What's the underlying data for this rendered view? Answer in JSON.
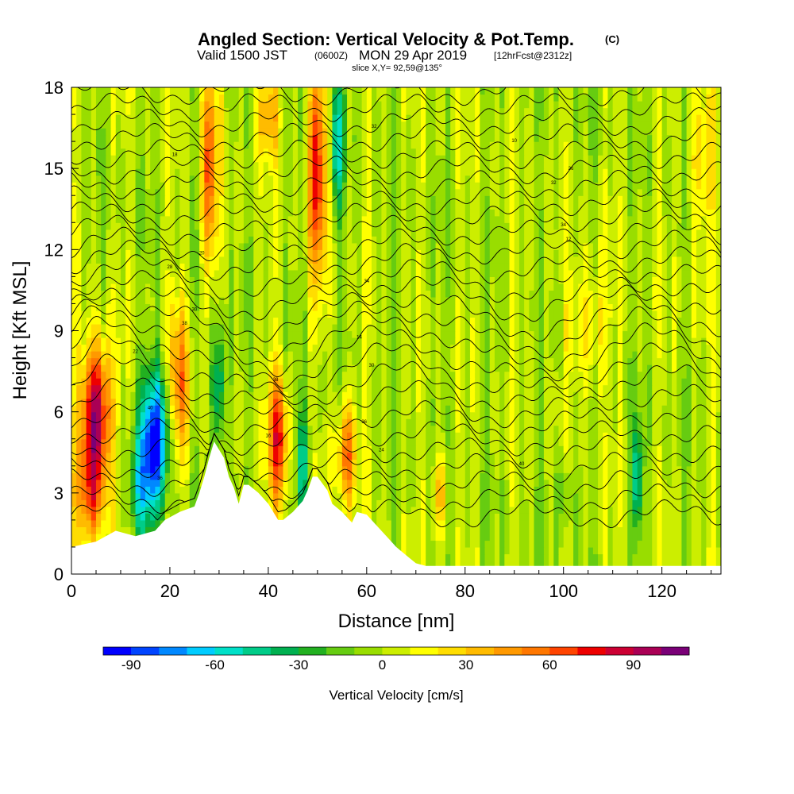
{
  "header": {
    "title": "Angled Section: Vertical Velocity & Pot.Temp.",
    "title_mark": "(C)",
    "subtitle_a": "Valid 1500 JST",
    "subtitle_b": "(0600Z)",
    "subtitle_c": "MON 29 Apr 2019",
    "subtitle_d": "[12hrFcst@2312z]",
    "slice": "slice X,Y= 92,59@135°"
  },
  "chart_data": {
    "type": "heatmap",
    "title": "Angled Section: Vertical Velocity & Pot.Temp.",
    "xlabel": "Distance [nm]",
    "ylabel": "Height [Kft MSL]",
    "xlim": [
      0,
      132
    ],
    "ylim": [
      0,
      18
    ],
    "x_ticks": [
      "0",
      "20",
      "40",
      "60",
      "80",
      "100",
      "120"
    ],
    "x_tick_values": [
      0,
      20,
      40,
      60,
      80,
      100,
      120
    ],
    "y_ticks": [
      "0",
      "3",
      "6",
      "9",
      "12",
      "15",
      "18"
    ],
    "y_tick_values": [
      0,
      3,
      6,
      9,
      12,
      15,
      18
    ],
    "colorbar": {
      "label": "Vertical Velocity [cm/s]",
      "ticks": [
        "-90",
        "-60",
        "-30",
        "0",
        "30",
        "60",
        "90"
      ],
      "tick_values": [
        -90,
        -60,
        -30,
        0,
        30,
        60,
        90
      ],
      "range": [
        -100,
        110
      ],
      "step": 10,
      "colors": [
        "#0000ff",
        "#0044ff",
        "#0088ff",
        "#00ccff",
        "#00e0c8",
        "#00cc88",
        "#00b050",
        "#22b020",
        "#66cc11",
        "#99dd00",
        "#ccee00",
        "#ffff00",
        "#ffdd00",
        "#ffbb00",
        "#ff9900",
        "#ff7700",
        "#ff4400",
        "#ee0000",
        "#cc0033",
        "#aa0055",
        "#7a0077"
      ]
    },
    "velocity_features": [
      {
        "x": 5,
        "y": 6.0,
        "value": 100,
        "sx": 3.0,
        "sy": 2.5
      },
      {
        "x": 4,
        "y": 3.0,
        "value": 55,
        "sx": 3.0,
        "sy": 2.0
      },
      {
        "x": 17,
        "y": 5.0,
        "value": -90,
        "sx": 3.0,
        "sy": 2.5
      },
      {
        "x": 14,
        "y": 3.0,
        "value": -40,
        "sx": 2.5,
        "sy": 2.0
      },
      {
        "x": 22,
        "y": 7.0,
        "value": 55,
        "sx": 2.0,
        "sy": 3.0
      },
      {
        "x": 28,
        "y": 15.0,
        "value": 65,
        "sx": 1.5,
        "sy": 4.0
      },
      {
        "x": 30,
        "y": 7.0,
        "value": -50,
        "sx": 1.5,
        "sy": 2.5
      },
      {
        "x": 42,
        "y": 5.0,
        "value": 70,
        "sx": 2.0,
        "sy": 2.5
      },
      {
        "x": 47,
        "y": 4.0,
        "value": -45,
        "sx": 1.5,
        "sy": 2.0
      },
      {
        "x": 50,
        "y": 15.0,
        "value": 70,
        "sx": 2.0,
        "sy": 4.0
      },
      {
        "x": 54,
        "y": 16.0,
        "value": -50,
        "sx": 1.5,
        "sy": 2.5
      },
      {
        "x": 56,
        "y": 4.5,
        "value": 60,
        "sx": 2.0,
        "sy": 2.0
      },
      {
        "x": 40,
        "y": 17.0,
        "value": 40,
        "sx": 2.5,
        "sy": 1.5
      },
      {
        "x": 75,
        "y": 3.0,
        "value": 40,
        "sx": 1.5,
        "sy": 1.5
      },
      {
        "x": 100,
        "y": 3.0,
        "value": -20,
        "sx": 2.0,
        "sy": 1.5
      },
      {
        "x": 115,
        "y": 3.5,
        "value": -55,
        "sx": 1.0,
        "sy": 2.0
      },
      {
        "x": 128,
        "y": 15.0,
        "value": 25,
        "sx": 3.0,
        "sy": 3.0
      },
      {
        "x": 105,
        "y": 9.0,
        "value": 25,
        "sx": 4.0,
        "sy": 2.5
      }
    ],
    "contour_labels": [
      "36",
      "38",
      "34",
      "32",
      "40",
      "30",
      "28",
      "26",
      "24",
      "22",
      "20",
      "18",
      "16",
      "14",
      "12",
      "10"
    ],
    "terrain": {
      "x": [
        0,
        5,
        9,
        13,
        17,
        19,
        22,
        25,
        26,
        27,
        28,
        29,
        31,
        32,
        33,
        34,
        35,
        36,
        38,
        40,
        42,
        43,
        45,
        47,
        48,
        49,
        50,
        52,
        53,
        55,
        57,
        58,
        60,
        62,
        64,
        66,
        68,
        70,
        72,
        75,
        80,
        90,
        100,
        110,
        120,
        130,
        132
      ],
      "height": [
        1.0,
        1.2,
        1.6,
        1.4,
        1.6,
        2.0,
        2.3,
        2.5,
        3.0,
        3.6,
        4.3,
        4.9,
        4.3,
        3.6,
        3.2,
        2.6,
        3.3,
        3.3,
        3.0,
        2.6,
        2.0,
        2.0,
        2.3,
        2.7,
        3.1,
        3.6,
        3.6,
        3.1,
        2.6,
        2.3,
        1.9,
        2.3,
        2.2,
        1.8,
        1.4,
        1.0,
        0.7,
        0.4,
        0.3,
        0.3,
        0.3,
        0.3,
        0.3,
        0.3,
        0.3,
        0.3,
        0.3
      ]
    }
  }
}
